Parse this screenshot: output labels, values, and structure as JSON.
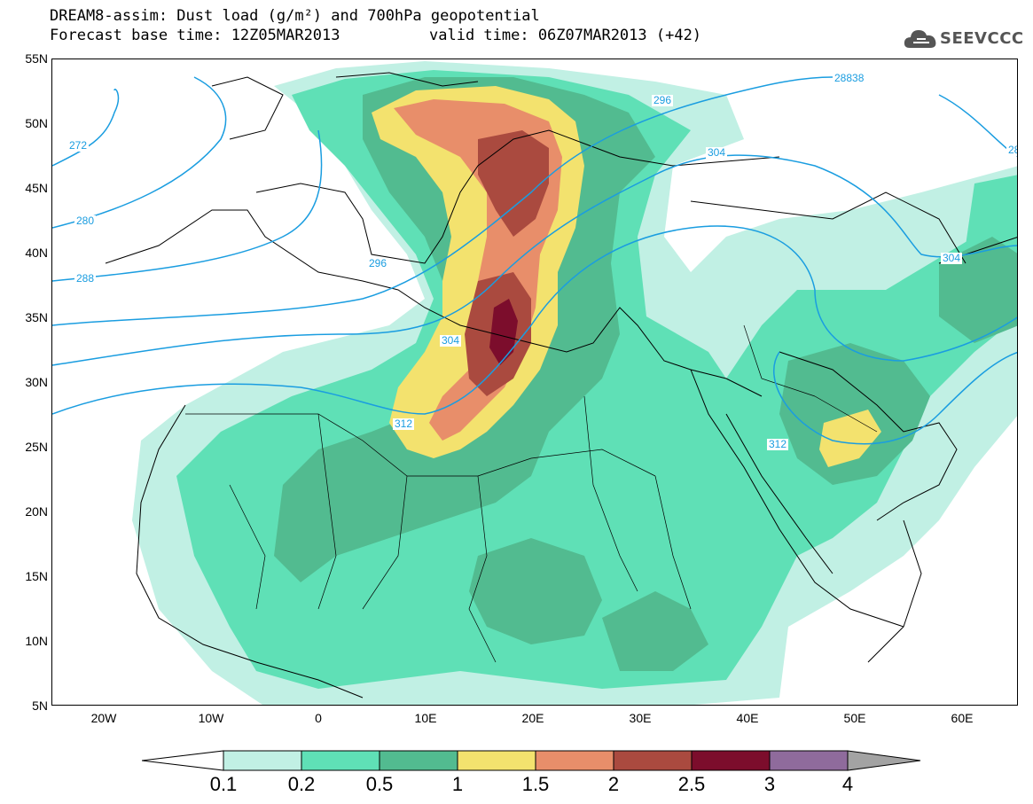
{
  "header": {
    "title": "DREAM8-assim: Dust load (g/m²) and 700hPa geopotential",
    "base_time": "Forecast base time: 12Z05MAR2013",
    "valid_time": "valid time: 06Z07MAR2013 (+42)"
  },
  "logo": {
    "text": "SEEVCCC",
    "icon": "cloud-icon"
  },
  "axes": {
    "latitudes": [
      "55N",
      "50N",
      "45N",
      "40N",
      "35N",
      "30N",
      "25N",
      "20N",
      "15N",
      "10N",
      "5N"
    ],
    "longitudes": [
      "20W",
      "10W",
      "0",
      "10E",
      "20E",
      "30E",
      "40E",
      "50E",
      "60E"
    ]
  },
  "contours": {
    "labels": [
      "272",
      "280",
      "288",
      "296",
      "296",
      "304",
      "304",
      "304",
      "312",
      "312",
      "28838",
      "28"
    ],
    "color": "#1a9de0"
  },
  "colorbar": {
    "ticks": [
      "0.1",
      "0.2",
      "0.5",
      "1",
      "1.5",
      "2",
      "2.5",
      "3",
      "4"
    ],
    "colors": [
      "#c1f0e4",
      "#5fe0b6",
      "#52bb90",
      "#f3e26e",
      "#e88e6a",
      "#aa4a3f",
      "#7c0d2c",
      "#8f6b9c",
      "#a3a3a3"
    ]
  },
  "dust_colors": {
    "0.1": "#c1f0e4",
    "0.2": "#5fe0b6",
    "0.5": "#52bb90",
    "1": "#f3e26e",
    "1.5": "#e88e6a",
    "2": "#aa4a3f",
    "2.5": "#7c0d2c"
  }
}
